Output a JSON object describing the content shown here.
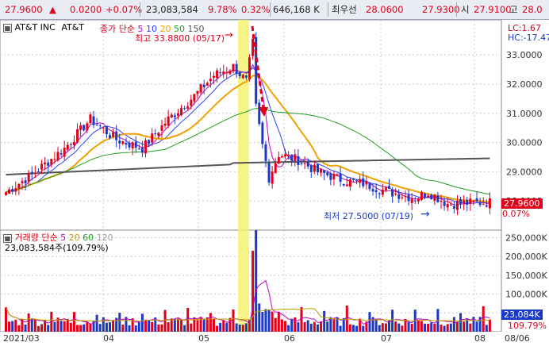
{
  "topbar": {
    "price": "27.9600",
    "change_arrow": "▲",
    "change": "0.0200",
    "change_pct": "+0.07%",
    "volume": "23,083,584",
    "ratio1": "9.78%",
    "ratio2": "0.32%",
    "amount": "646,168 K",
    "best_label": "최우선",
    "ask": "28.0600",
    "bid": "27.9300",
    "open_label": "시",
    "open": "27.9100",
    "high_label": "고",
    "high": "28.0"
  },
  "price_panel": {
    "stock_name": "AT&T INC",
    "stock_code": "AT&T",
    "ma_label": "종가 단순",
    "ma_periods": [
      "5",
      "10",
      "20",
      "50",
      "150"
    ],
    "ma_colors": [
      "#c000c0",
      "#3040ff",
      "#f0a000",
      "#20a020",
      "#555555"
    ],
    "lc": "LC:1.67",
    "hc": "HC:-17.47",
    "high_annotation": "최고 33.8800 (05/17)",
    "low_annotation": "최저 27.5000 (07/19)",
    "current_price_label": "27.9600",
    "current_pct_label": "0.07%",
    "y_ticks": [
      "33.0000",
      "32.0000",
      "31.0000",
      "30.0000",
      "29.0000",
      "28.0000"
    ]
  },
  "volume_panel": {
    "title": "거래량",
    "ma_label": "단순",
    "ma_periods": [
      "5",
      "20",
      "60",
      "120"
    ],
    "ma_colors": [
      "#c000c0",
      "#b8a000",
      "#20a020",
      "#a0a0a0"
    ],
    "value_label": "23,083,584주(109.79%)",
    "y_ticks": [
      "250,000K",
      "200,000K",
      "150,000K",
      "100,000K",
      "50,000K"
    ],
    "current_label": "23,084K",
    "current_pct": "109.79%"
  },
  "x_axis": [
    "2021/03",
    "04",
    "05",
    "06",
    "07",
    "08",
    "08/06"
  ],
  "colors": {
    "up": "#e0001a",
    "down": "#1a39c8",
    "highlight": "#f6f36a"
  },
  "chart_data": {
    "type": "candlestick",
    "ylim": [
      27.0,
      34.2
    ],
    "high": {
      "value": 33.88,
      "date": "05/17"
    },
    "low": {
      "value": 27.5,
      "date": "07/19"
    },
    "last_close": 27.96,
    "volume_ylim_k": [
      0,
      270000
    ],
    "last_volume_k": 23084
  }
}
